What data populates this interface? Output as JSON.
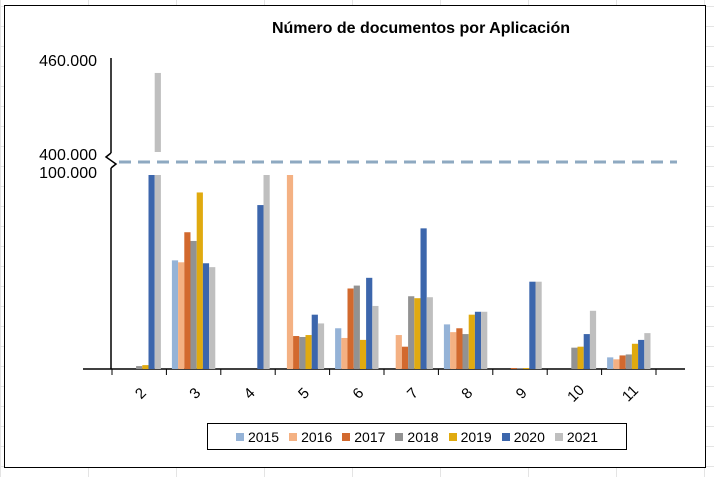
{
  "chart_data": {
    "type": "bar",
    "title": "Número de documentos por Aplicación",
    "xlabel": "",
    "ylabel": "",
    "axis_break": {
      "lower_max": 100000,
      "upper_min": 400000
    },
    "y_tick_labels": {
      "upper_top": "460.000",
      "break_upper": "400.000",
      "break_lower": "100.000"
    },
    "ylim_lower": [
      0,
      100000
    ],
    "ylim_upper": [
      400000,
      460000
    ],
    "categories": [
      "2",
      "3",
      "4",
      "5",
      "6",
      "7",
      "8",
      "9",
      "10",
      "11"
    ],
    "legend_position": "bottom",
    "series": [
      {
        "name": "2015",
        "color": "#95B3D7",
        "values": [
          0,
          56000,
          0,
          0,
          21000,
          0,
          23000,
          0,
          0,
          6000
        ]
      },
      {
        "name": "2016",
        "color": "#F4B183",
        "values": [
          0,
          55000,
          0,
          100000,
          16000,
          17500,
          19000,
          0,
          0,
          5000
        ]
      },
      {
        "name": "2017",
        "color": "#D2692E",
        "values": [
          0,
          70500,
          0,
          17000,
          41500,
          11500,
          21000,
          500,
          0,
          7000
        ]
      },
      {
        "name": "2018",
        "color": "#929292",
        "values": [
          1500,
          66000,
          0,
          16500,
          43000,
          37500,
          18000,
          500,
          11000,
          7500
        ]
      },
      {
        "name": "2019",
        "color": "#E0AA0F",
        "values": [
          2000,
          91000,
          0,
          17500,
          15000,
          36500,
          28000,
          500,
          11500,
          13000
        ]
      },
      {
        "name": "2020",
        "color": "#3C66AC",
        "values": [
          100000,
          54500,
          84500,
          28000,
          47000,
          72500,
          29500,
          45000,
          18000,
          15000
        ]
      },
      {
        "name": "2021",
        "color": "#BFBFBF",
        "values": [
          451000,
          52500,
          100000,
          23500,
          32500,
          37000,
          29500,
          45000,
          30000,
          18500
        ]
      }
    ]
  }
}
